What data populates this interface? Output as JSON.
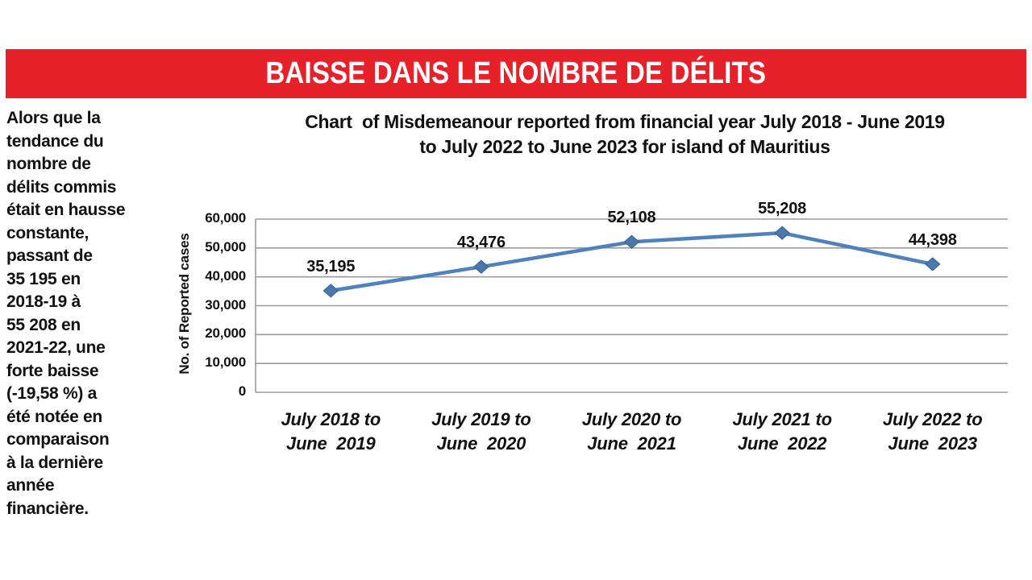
{
  "banner": {
    "title": "BAISSE DANS LE NOMBRE DE DÉLITS",
    "background_color": "#e7212a",
    "text_color": "#ffffff"
  },
  "sidebar": {
    "text": "Alors que la\ntendance du\nnombre de\ndélits commis\nétait en hausse\nconstante,\npassant de\n35 195 en\n2018-19 à\n55 208 en\n2021-22, une\nforte baisse\n(-19,58 %) a\nété notée en\ncomparaison\nà la dernière\nannée\nfinancière."
  },
  "chart_data": {
    "type": "line",
    "title": "Chart  of Misdemeanour reported from financial year July 2018 - June 2019\nto July 2022 to June 2023 for island of Mauritius",
    "xlabel": "",
    "ylabel": "No. of Reported cases",
    "categories": [
      "July 2018 to\nJune  2019",
      "July 2019 to\nJune  2020",
      "July 2020 to\nJune  2021",
      "July 2021 to\nJune  2022",
      "July 2022 to\nJune  2023"
    ],
    "values": [
      35195,
      43476,
      52108,
      55208,
      44398
    ],
    "data_labels": [
      "35,195",
      "43,476",
      "52,108",
      "55,208",
      "44,398"
    ],
    "y_tick_labels": [
      "0",
      "10,000",
      "20,000",
      "30,000",
      "40,000",
      "50,000",
      "60,000"
    ],
    "ylim": [
      0,
      60000
    ],
    "grid": true,
    "legend": "none",
    "line_color": "#4f81bd",
    "marker_color": "#4a77ad",
    "marker_edge_color": "#38618f",
    "gridline_color": "#9b9b9b",
    "text_color": "#111111"
  }
}
